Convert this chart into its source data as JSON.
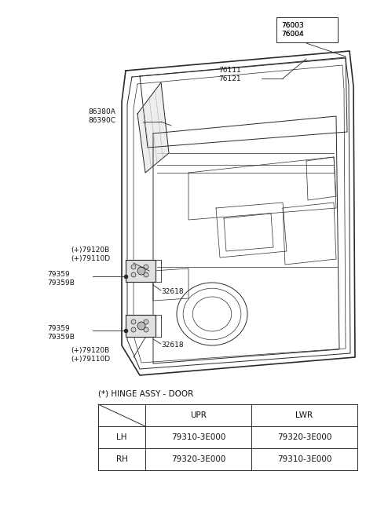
{
  "bg_color": "#ffffff",
  "table_title": "(*) HINGE ASSY - DOOR",
  "table_headers": [
    "",
    "UPR",
    "LWR"
  ],
  "table_rows": [
    [
      "LH",
      "79310-3E000",
      "79320-3E000"
    ],
    [
      "RH",
      "79320-3E000",
      "79310-3E000"
    ]
  ],
  "line_color": "#2a2a2a",
  "font_size_label": 6.5,
  "font_size_table_title": 7.5,
  "font_size_table": 7.5
}
